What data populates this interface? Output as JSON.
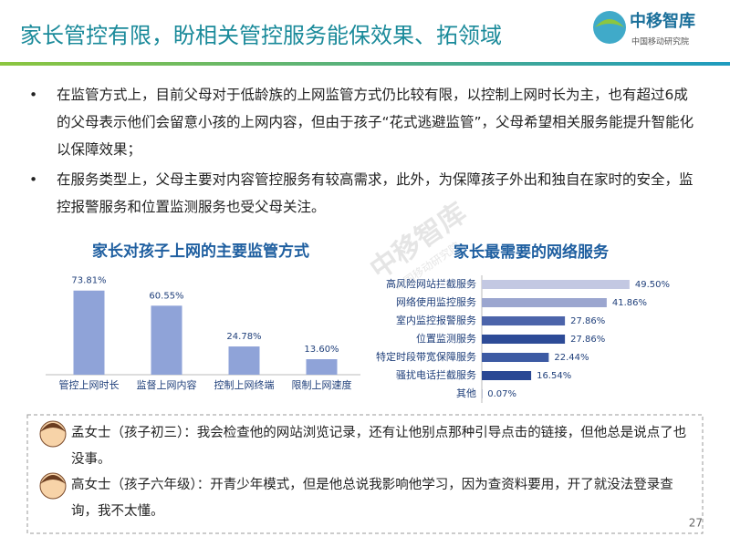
{
  "header": {
    "title": "家长管控有限，盼相关管控服务能保效果、拓领域",
    "logo": "中移智库",
    "logo_sub": "中国移动研究院"
  },
  "bullets": [
    "在监管方式上，目前父母对于低龄族的上网监管方式仍比较有限，以控制上网时长为主，也有超过6成的父母表示他们会留意小孩的上网内容，但由于孩子“花式逃避监管”，父母希望相关服务能提升智能化以保障效果；",
    "在服务类型上，父母主要对内容管控服务有较高需求，此外，为保障孩子外出和独自在家时的安全，监控报警服务和位置监测服务也受父母关注。"
  ],
  "chart_data": [
    {
      "type": "bar",
      "title": "家长对孩子上网的主要监管方式",
      "categories": [
        "管控上网时长",
        "监督上网内容",
        "控制上网终端",
        "限制上网速度"
      ],
      "values": [
        73.81,
        60.55,
        24.78,
        13.6
      ],
      "value_labels": [
        "73.81%",
        "60.55%",
        "24.78%",
        "13.60%"
      ],
      "color": "#8fa3d8"
    },
    {
      "type": "barh",
      "title": "家长最需要的网络服务",
      "categories": [
        "高风险网站拦截服务",
        "网络使用监控服务",
        "室内监控报警服务",
        "位置监测服务",
        "特定时段带宽保障服务",
        "骚扰电话拦截服务",
        "其他"
      ],
      "values": [
        49.5,
        41.86,
        27.86,
        27.86,
        22.44,
        16.54,
        0.07
      ],
      "value_labels": [
        "49.50%",
        "41.86%",
        "27.86%",
        "27.86%",
        "22.44%",
        "16.54%",
        "0.07%"
      ],
      "colors": [
        "#c3c8e2",
        "#9ba6cf",
        "#4c64aa",
        "#2d4b97",
        "#3c5aa3",
        "#2a4894",
        "#2a4894"
      ]
    }
  ],
  "quotes": [
    "孟女士（孩子初三）：我会检查他的网站浏览记录，还有让他别点那种引导点击的链接，但他总是说点了也没事。",
    "高女士（孩子六年级）：开青少年模式，但是他总说我影响他学习，因为查资料要用，开了就没法登录查询，我不太懂。"
  ],
  "page_number": "27"
}
